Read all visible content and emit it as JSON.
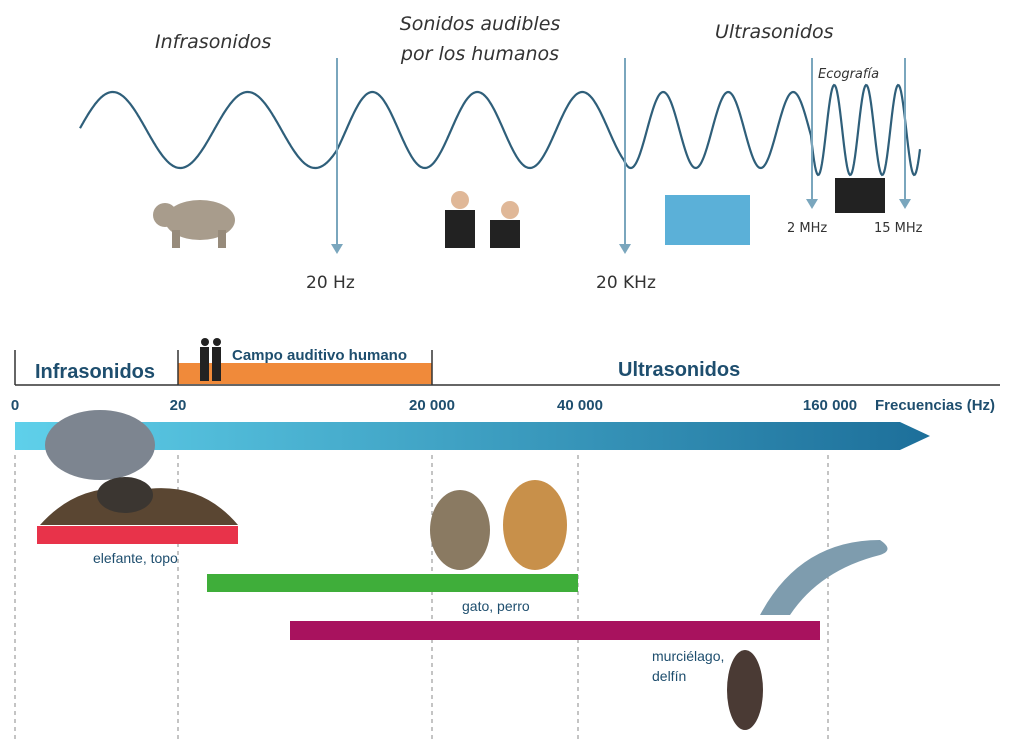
{
  "spectrum": {
    "infra": "Infrasonidos",
    "audible": [
      "Sonidos audibles",
      "por los humanos"
    ],
    "ultra": "Ultrasonidos",
    "eco": "Ecografía",
    "markers": [
      "20 Hz",
      "20 KHz",
      "2 MHz",
      "15 MHz"
    ]
  },
  "scale": {
    "bands": [
      "Infrasonidos",
      "Campo auditivo humano",
      "Ultrasonidos"
    ],
    "ticks": [
      "0",
      "20",
      "20 000",
      "40 000",
      "160 000"
    ],
    "axis_label": "Frecuencias (Hz)",
    "animals": [
      {
        "label": [
          "elefante, topo"
        ]
      },
      {
        "label": [
          "gato, perro"
        ]
      },
      {
        "label": [
          "murciélago,",
          "delfín"
        ]
      }
    ]
  }
}
